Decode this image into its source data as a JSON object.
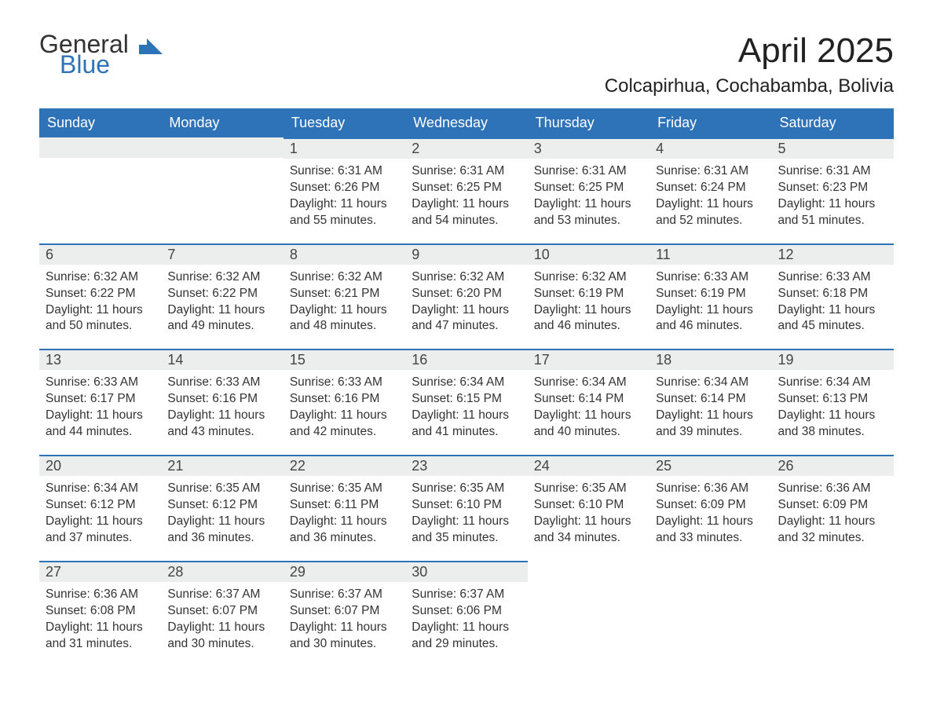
{
  "brand": {
    "part1": "General",
    "part2": "Blue",
    "accent_color": "#2e72b8"
  },
  "title": "April 2025",
  "location": "Colcapirhua, Cochabamba, Bolivia",
  "colors": {
    "header_bg": "#2e72b8",
    "header_text": "#ffffff",
    "daynum_bg": "#eceded",
    "row_border": "#2e72b8",
    "body_text": "#333333",
    "page_bg": "#ffffff"
  },
  "fonts": {
    "title_size_pt": 33,
    "location_size_pt": 18,
    "dayheader_size_pt": 14,
    "body_size_pt": 11.5
  },
  "calendar": {
    "type": "table",
    "columns": [
      "Sunday",
      "Monday",
      "Tuesday",
      "Wednesday",
      "Thursday",
      "Friday",
      "Saturday"
    ],
    "weeks": [
      [
        null,
        null,
        {
          "n": "1",
          "sunrise": "6:31 AM",
          "sunset": "6:26 PM",
          "daylight": "11 hours and 55 minutes."
        },
        {
          "n": "2",
          "sunrise": "6:31 AM",
          "sunset": "6:25 PM",
          "daylight": "11 hours and 54 minutes."
        },
        {
          "n": "3",
          "sunrise": "6:31 AM",
          "sunset": "6:25 PM",
          "daylight": "11 hours and 53 minutes."
        },
        {
          "n": "4",
          "sunrise": "6:31 AM",
          "sunset": "6:24 PM",
          "daylight": "11 hours and 52 minutes."
        },
        {
          "n": "5",
          "sunrise": "6:31 AM",
          "sunset": "6:23 PM",
          "daylight": "11 hours and 51 minutes."
        }
      ],
      [
        {
          "n": "6",
          "sunrise": "6:32 AM",
          "sunset": "6:22 PM",
          "daylight": "11 hours and 50 minutes."
        },
        {
          "n": "7",
          "sunrise": "6:32 AM",
          "sunset": "6:22 PM",
          "daylight": "11 hours and 49 minutes."
        },
        {
          "n": "8",
          "sunrise": "6:32 AM",
          "sunset": "6:21 PM",
          "daylight": "11 hours and 48 minutes."
        },
        {
          "n": "9",
          "sunrise": "6:32 AM",
          "sunset": "6:20 PM",
          "daylight": "11 hours and 47 minutes."
        },
        {
          "n": "10",
          "sunrise": "6:32 AM",
          "sunset": "6:19 PM",
          "daylight": "11 hours and 46 minutes."
        },
        {
          "n": "11",
          "sunrise": "6:33 AM",
          "sunset": "6:19 PM",
          "daylight": "11 hours and 46 minutes."
        },
        {
          "n": "12",
          "sunrise": "6:33 AM",
          "sunset": "6:18 PM",
          "daylight": "11 hours and 45 minutes."
        }
      ],
      [
        {
          "n": "13",
          "sunrise": "6:33 AM",
          "sunset": "6:17 PM",
          "daylight": "11 hours and 44 minutes."
        },
        {
          "n": "14",
          "sunrise": "6:33 AM",
          "sunset": "6:16 PM",
          "daylight": "11 hours and 43 minutes."
        },
        {
          "n": "15",
          "sunrise": "6:33 AM",
          "sunset": "6:16 PM",
          "daylight": "11 hours and 42 minutes."
        },
        {
          "n": "16",
          "sunrise": "6:34 AM",
          "sunset": "6:15 PM",
          "daylight": "11 hours and 41 minutes."
        },
        {
          "n": "17",
          "sunrise": "6:34 AM",
          "sunset": "6:14 PM",
          "daylight": "11 hours and 40 minutes."
        },
        {
          "n": "18",
          "sunrise": "6:34 AM",
          "sunset": "6:14 PM",
          "daylight": "11 hours and 39 minutes."
        },
        {
          "n": "19",
          "sunrise": "6:34 AM",
          "sunset": "6:13 PM",
          "daylight": "11 hours and 38 minutes."
        }
      ],
      [
        {
          "n": "20",
          "sunrise": "6:34 AM",
          "sunset": "6:12 PM",
          "daylight": "11 hours and 37 minutes."
        },
        {
          "n": "21",
          "sunrise": "6:35 AM",
          "sunset": "6:12 PM",
          "daylight": "11 hours and 36 minutes."
        },
        {
          "n": "22",
          "sunrise": "6:35 AM",
          "sunset": "6:11 PM",
          "daylight": "11 hours and 36 minutes."
        },
        {
          "n": "23",
          "sunrise": "6:35 AM",
          "sunset": "6:10 PM",
          "daylight": "11 hours and 35 minutes."
        },
        {
          "n": "24",
          "sunrise": "6:35 AM",
          "sunset": "6:10 PM",
          "daylight": "11 hours and 34 minutes."
        },
        {
          "n": "25",
          "sunrise": "6:36 AM",
          "sunset": "6:09 PM",
          "daylight": "11 hours and 33 minutes."
        },
        {
          "n": "26",
          "sunrise": "6:36 AM",
          "sunset": "6:09 PM",
          "daylight": "11 hours and 32 minutes."
        }
      ],
      [
        {
          "n": "27",
          "sunrise": "6:36 AM",
          "sunset": "6:08 PM",
          "daylight": "11 hours and 31 minutes."
        },
        {
          "n": "28",
          "sunrise": "6:37 AM",
          "sunset": "6:07 PM",
          "daylight": "11 hours and 30 minutes."
        },
        {
          "n": "29",
          "sunrise": "6:37 AM",
          "sunset": "6:07 PM",
          "daylight": "11 hours and 30 minutes."
        },
        {
          "n": "30",
          "sunrise": "6:37 AM",
          "sunset": "6:06 PM",
          "daylight": "11 hours and 29 minutes."
        },
        null,
        null,
        null
      ]
    ],
    "labels": {
      "sunrise": "Sunrise: ",
      "sunset": "Sunset: ",
      "daylight": "Daylight: "
    }
  }
}
